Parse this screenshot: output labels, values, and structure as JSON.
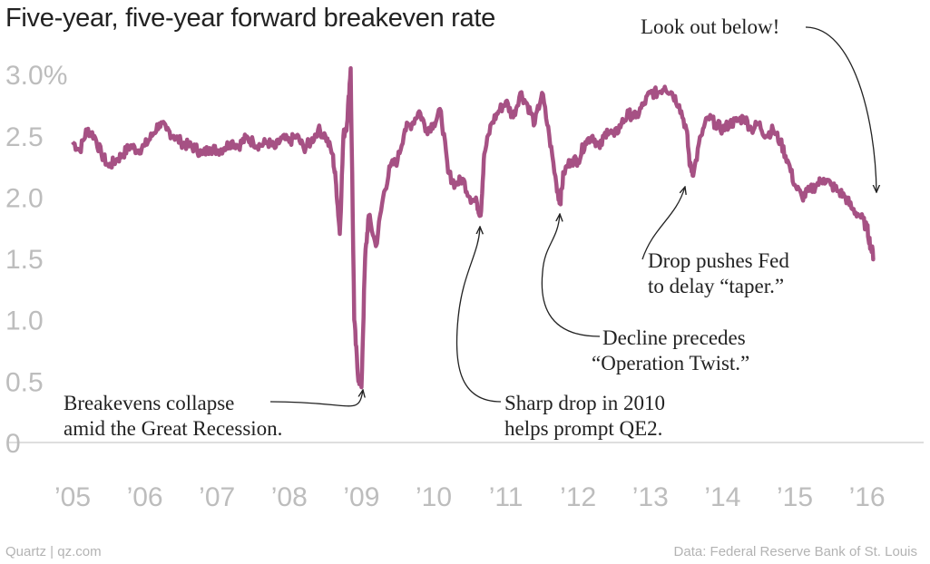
{
  "title": "Five-year, five-year forward breakeven rate",
  "footer": {
    "credit": "Quartz | qz.com",
    "source": "Data: Federal Reserve Bank of St. Louis"
  },
  "colors": {
    "line": "#a65184",
    "axis": "#bdbdbd",
    "text": "#222222"
  },
  "chart_data": {
    "type": "line",
    "title": "Five-year, five-year forward breakeven rate",
    "xlabel": "",
    "ylabel": "",
    "xlim": [
      2005.0,
      2016.3
    ],
    "ylim": [
      0,
      3.0
    ],
    "y_ticks": [
      {
        "value": 3.0,
        "label": "3.0%"
      },
      {
        "value": 2.5,
        "label": "2.5"
      },
      {
        "value": 2.0,
        "label": "2.0"
      },
      {
        "value": 1.5,
        "label": "1.5"
      },
      {
        "value": 1.0,
        "label": "1.0"
      },
      {
        "value": 0.5,
        "label": "0.5"
      },
      {
        "value": 0,
        "label": "0"
      }
    ],
    "x_ticks": [
      {
        "value": 2005,
        "label": "’05"
      },
      {
        "value": 2006,
        "label": "’06"
      },
      {
        "value": 2007,
        "label": "’07"
      },
      {
        "value": 2008,
        "label": "’08"
      },
      {
        "value": 2009,
        "label": "’09"
      },
      {
        "value": 2010,
        "label": "’10"
      },
      {
        "value": 2011,
        "label": "’11"
      },
      {
        "value": 2012,
        "label": "’12"
      },
      {
        "value": 2013,
        "label": "’13"
      },
      {
        "value": 2014,
        "label": "’14"
      },
      {
        "value": 2015,
        "label": "’15"
      },
      {
        "value": 2016,
        "label": "’16"
      }
    ],
    "series": [
      {
        "name": "Five-year, five-year forward breakeven rate",
        "x": [
          2005.0,
          2005.1,
          2005.2,
          2005.3,
          2005.4,
          2005.5,
          2005.6,
          2005.7,
          2005.8,
          2005.9,
          2006.0,
          2006.1,
          2006.2,
          2006.3,
          2006.4,
          2006.5,
          2006.6,
          2006.7,
          2006.8,
          2006.9,
          2007.0,
          2007.1,
          2007.2,
          2007.3,
          2007.4,
          2007.5,
          2007.6,
          2007.7,
          2007.8,
          2007.9,
          2008.0,
          2008.1,
          2008.2,
          2008.3,
          2008.4,
          2008.5,
          2008.6,
          2008.65,
          2008.7,
          2008.75,
          2008.8,
          2008.85,
          2008.9,
          2008.95,
          2009.0,
          2009.05,
          2009.1,
          2009.2,
          2009.3,
          2009.4,
          2009.5,
          2009.6,
          2009.7,
          2009.8,
          2009.9,
          2010.0,
          2010.1,
          2010.2,
          2010.3,
          2010.4,
          2010.5,
          2010.6,
          2010.65,
          2010.7,
          2010.8,
          2010.9,
          2011.0,
          2011.1,
          2011.2,
          2011.3,
          2011.4,
          2011.5,
          2011.6,
          2011.7,
          2011.75,
          2011.8,
          2011.9,
          2012.0,
          2012.1,
          2012.2,
          2012.3,
          2012.4,
          2012.5,
          2012.6,
          2012.7,
          2012.8,
          2012.9,
          2013.0,
          2013.1,
          2013.2,
          2013.3,
          2013.4,
          2013.5,
          2013.55,
          2013.6,
          2013.7,
          2013.8,
          2013.9,
          2014.0,
          2014.1,
          2014.2,
          2014.3,
          2014.4,
          2014.5,
          2014.6,
          2014.7,
          2014.8,
          2014.9,
          2015.0,
          2015.1,
          2015.2,
          2015.3,
          2015.4,
          2015.5,
          2015.6,
          2015.7,
          2015.8,
          2015.9,
          2016.0,
          2016.05,
          2016.1
        ],
        "values": [
          2.45,
          2.38,
          2.55,
          2.5,
          2.35,
          2.25,
          2.3,
          2.35,
          2.42,
          2.38,
          2.42,
          2.5,
          2.6,
          2.55,
          2.5,
          2.45,
          2.42,
          2.4,
          2.35,
          2.4,
          2.38,
          2.4,
          2.45,
          2.42,
          2.48,
          2.45,
          2.42,
          2.45,
          2.4,
          2.48,
          2.45,
          2.5,
          2.4,
          2.45,
          2.55,
          2.5,
          2.35,
          2.1,
          1.7,
          2.5,
          2.6,
          3.05,
          1.0,
          0.55,
          0.45,
          1.5,
          1.85,
          1.6,
          2.0,
          2.25,
          2.3,
          2.55,
          2.6,
          2.7,
          2.55,
          2.6,
          2.7,
          2.2,
          2.1,
          2.15,
          2.0,
          1.95,
          1.85,
          2.35,
          2.6,
          2.7,
          2.78,
          2.65,
          2.85,
          2.75,
          2.6,
          2.85,
          2.5,
          2.1,
          1.95,
          2.2,
          2.3,
          2.3,
          2.45,
          2.5,
          2.4,
          2.55,
          2.5,
          2.6,
          2.68,
          2.65,
          2.75,
          2.85,
          2.85,
          2.9,
          2.85,
          2.75,
          2.55,
          2.25,
          2.2,
          2.5,
          2.65,
          2.6,
          2.55,
          2.6,
          2.62,
          2.65,
          2.55,
          2.6,
          2.5,
          2.55,
          2.45,
          2.3,
          2.1,
          2.0,
          2.05,
          2.1,
          2.15,
          2.1,
          2.05,
          2.0,
          1.9,
          1.85,
          1.75,
          1.6,
          1.5
        ]
      }
    ],
    "annotations": [
      {
        "lines": [
          "Look out below!"
        ],
        "x": 2016.1,
        "y": 2.0
      },
      {
        "lines": [
          "Drop pushes Fed",
          "to delay “taper.”"
        ],
        "x": 2013.55,
        "y": 2.15
      },
      {
        "lines": [
          "Decline precedes",
          "“Operation Twist.”"
        ],
        "x": 2011.75,
        "y": 1.95
      },
      {
        "lines": [
          "Sharp drop in 2010",
          "helps prompt QE2."
        ],
        "x": 2010.65,
        "y": 1.8
      },
      {
        "lines": [
          "Breakevens collapse",
          "amid the Great Recession."
        ],
        "x": 2009.0,
        "y": 0.4
      }
    ]
  }
}
